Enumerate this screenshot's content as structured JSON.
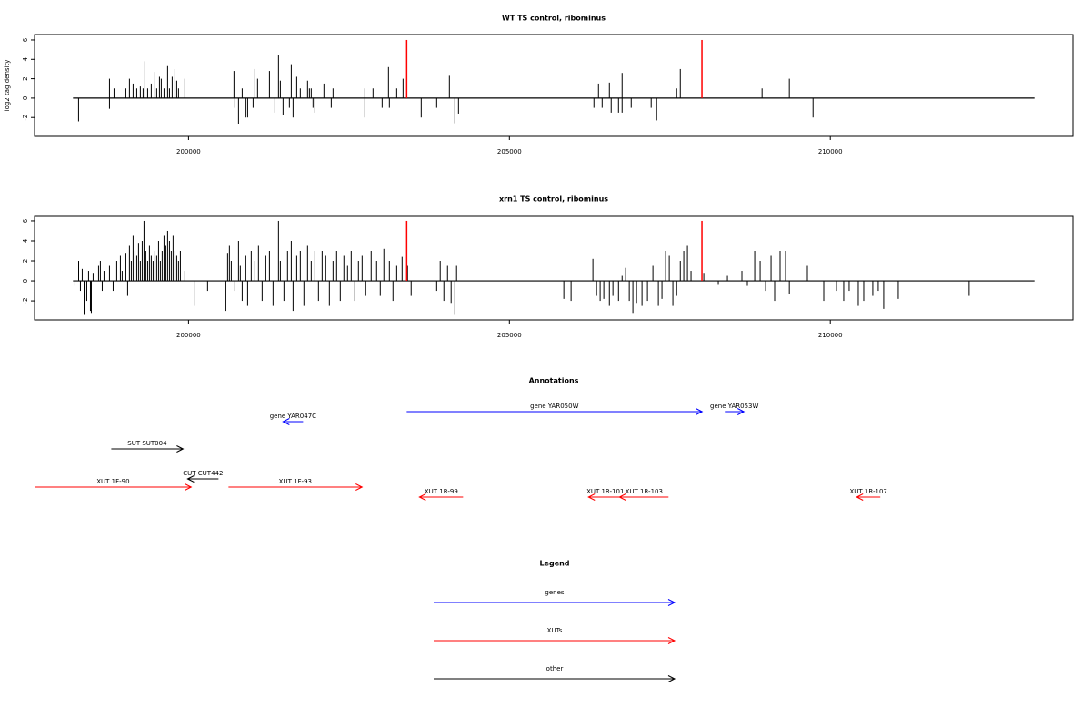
{
  "chart_data": [
    {
      "type": "spikes",
      "title": "WT TS control, ribominus",
      "y_label": "log2 tag density",
      "color": "#000000",
      "xlim": [
        197600,
        213780
      ],
      "xticks": [
        200000,
        205000,
        210000
      ],
      "ylim": [
        -3.95,
        6.56
      ],
      "yticks": [
        -2,
        0,
        2,
        4,
        6
      ],
      "x": [
        198286,
        198768,
        198768,
        198839,
        199023,
        199079,
        199136,
        199193,
        199249,
        199292,
        199320,
        199363,
        199419,
        199476,
        199504,
        199547,
        199575,
        199618,
        199674,
        199703,
        199745,
        199788,
        199816,
        199844,
        199943,
        200708,
        200722,
        200779,
        200836,
        200892,
        200921,
        201006,
        201034,
        201076,
        201261,
        201346,
        201402,
        201431,
        201473,
        201572,
        201601,
        201629,
        201686,
        201742,
        201855,
        201884,
        201912,
        201940,
        201969,
        202110,
        202224,
        202252,
        202748,
        202748,
        202875,
        203017,
        203116,
        203130,
        203244,
        203343,
        203626,
        203867,
        204065,
        204150,
        204207,
        206317,
        206388,
        206445,
        206558,
        206586,
        206700,
        206756,
        206756,
        206898,
        207209,
        207294,
        207606,
        207663,
        208937,
        209362,
        209731
      ],
      "values": [
        -2.4,
        2,
        -1.1,
        1,
        1,
        2,
        1.5,
        1,
        1.2,
        1,
        3.8,
        1,
        1.5,
        2.7,
        1,
        2.2,
        2,
        1,
        3.3,
        1,
        2.2,
        3,
        1.8,
        1,
        2,
        2.8,
        -1,
        -2.7,
        1,
        -2,
        -2,
        -1,
        3,
        2,
        2.8,
        -1.5,
        4.4,
        1.8,
        -1.7,
        -1,
        3.5,
        -2,
        2.2,
        1,
        1.8,
        1,
        1,
        -1,
        -1.5,
        1.5,
        -1,
        1,
        1,
        -2,
        1,
        -1,
        3.2,
        -1,
        1,
        2,
        -2,
        -1,
        2.3,
        -2.6,
        -1.6,
        -1,
        1.5,
        -1,
        1.6,
        -1.5,
        -1.5,
        2.6,
        -1.5,
        -1,
        -1,
        -2.3,
        1,
        3,
        1,
        2,
        -2
      ],
      "highlights": {
        "color": "#ff0000",
        "x": [
          203400,
          208000
        ],
        "values": [
          6,
          6
        ]
      }
    },
    {
      "type": "spikes",
      "title": "xrn1 TS control, ribominus",
      "color": "#000000",
      "xlim": [
        197600,
        213780
      ],
      "xticks": [
        200000,
        205000,
        210000
      ],
      "ylim": [
        -3.9,
        6.45
      ],
      "yticks": [
        -2,
        0,
        2,
        4,
        6
      ],
      "x": [
        198230,
        198287,
        198315,
        198343,
        198372,
        198414,
        198442,
        198471,
        198485,
        198513,
        198542,
        198598,
        198626,
        198655,
        198683,
        198768,
        198825,
        198881,
        198938,
        198966,
        199023,
        199051,
        199079,
        199108,
        199136,
        199165,
        199193,
        199221,
        199249,
        199278,
        199306,
        199320,
        199334,
        199363,
        199391,
        199419,
        199448,
        199476,
        199504,
        199533,
        199561,
        199589,
        199618,
        199646,
        199674,
        199703,
        199731,
        199759,
        199788,
        199816,
        199844,
        199873,
        199943,
        200099,
        200297,
        200581,
        200609,
        200637,
        200666,
        200722,
        200779,
        200807,
        200836,
        200892,
        200921,
        200977,
        201034,
        201090,
        201147,
        201204,
        201261,
        201317,
        201402,
        201431,
        201487,
        201543,
        201601,
        201629,
        201686,
        201742,
        201798,
        201855,
        201912,
        201969,
        202025,
        202082,
        202138,
        202195,
        202252,
        202308,
        202365,
        202421,
        202478,
        202535,
        202591,
        202648,
        202705,
        202761,
        202846,
        202931,
        202988,
        203044,
        203130,
        203186,
        203244,
        203328,
        203413,
        203469,
        203867,
        203922,
        203979,
        204036,
        204092,
        204150,
        204177,
        205848,
        205961,
        206301,
        206358,
        206414,
        206471,
        206558,
        206613,
        206700,
        206756,
        206811,
        206868,
        206924,
        206981,
        207066,
        207151,
        207236,
        207321,
        207377,
        207434,
        207491,
        207547,
        207606,
        207663,
        207717,
        207774,
        207830,
        208029,
        208255,
        208397,
        208623,
        208708,
        208822,
        208907,
        208992,
        209077,
        209133,
        209218,
        209303,
        209362,
        209643,
        209898,
        210096,
        210209,
        210294,
        210436,
        210521,
        210662,
        210747,
        210832,
        211059,
        212163
      ],
      "values": [
        -0.5,
        2,
        -1,
        1.2,
        -3.4,
        -2,
        1,
        -3,
        -3.2,
        0.8,
        -1.8,
        1.5,
        2,
        -1,
        1,
        1.5,
        -1,
        2,
        2.5,
        1,
        2.8,
        -1.5,
        3.5,
        2,
        4.5,
        3,
        2.5,
        3.8,
        2,
        4,
        6,
        5.5,
        3,
        2,
        3.5,
        2.5,
        2,
        3,
        2.5,
        4,
        2,
        3,
        4.5,
        3.5,
        5,
        4,
        3,
        4.5,
        3,
        2.5,
        2,
        3,
        1,
        -2.5,
        -1,
        -3,
        2.8,
        3.5,
        2,
        -1,
        4,
        1.5,
        -2,
        2.5,
        -2.5,
        3,
        2,
        3.5,
        -2,
        2.5,
        3,
        -2.5,
        6,
        2,
        -2,
        3,
        4,
        -3,
        2.5,
        3,
        -2.5,
        3.5,
        2,
        3,
        -2,
        3,
        2.5,
        -2.5,
        2,
        3,
        -2,
        2.5,
        1.5,
        3,
        -2,
        2,
        2.5,
        -1.5,
        3,
        2,
        -1.5,
        3.2,
        2,
        -2,
        1.5,
        2.4,
        1.5,
        -1.5,
        -1,
        2,
        -2,
        1.5,
        -2.2,
        -3.4,
        1.5,
        -1.8,
        -2,
        2.2,
        -1.5,
        -2,
        -1.8,
        -2.5,
        -1.5,
        -2,
        0.5,
        1.3,
        -2,
        -3.2,
        -2.2,
        -2.5,
        -2,
        1.5,
        -2.5,
        -1.8,
        3,
        2.5,
        -2.5,
        -1.5,
        2,
        3,
        3.5,
        1,
        0.8,
        -0.4,
        0.5,
        1,
        -0.5,
        3,
        2,
        -1,
        2.5,
        -2,
        3,
        3,
        -1.3,
        1.5,
        -2,
        -1,
        -2,
        -1,
        -2.5,
        -2,
        -1.5,
        -1,
        -2.8,
        -1.8,
        -1.5
      ],
      "highlights": {
        "color": "#ff0000",
        "x": [
          203400,
          208000
        ],
        "values": [
          6,
          6
        ]
      }
    },
    {
      "type": "annotation",
      "title": "Annotations",
      "xlim": [
        197600,
        213780
      ],
      "features": [
        {
          "label": "gene YAR047C",
          "start": 201785,
          "end": 201473,
          "color": "#0000ff"
        },
        {
          "label": "gene YAR050W",
          "start": 203400,
          "end": 208003,
          "color": "#0000ff"
        },
        {
          "label": "gene YAR053W",
          "start": 208357,
          "end": 208654,
          "color": "#0000ff"
        },
        {
          "label": "SUT SUT004",
          "start": 198796,
          "end": 199915,
          "color": "#000000"
        },
        {
          "label": "CUT CUT442",
          "start": 200467,
          "end": 199986,
          "color": "#000000"
        },
        {
          "label": "XUT 1F-90",
          "start": 197606,
          "end": 200042,
          "color": "#ff0000"
        },
        {
          "label": "XUT 1F-93",
          "start": 200623,
          "end": 202705,
          "color": "#ff0000"
        },
        {
          "label": "XUT 1R-99",
          "start": 204278,
          "end": 203598,
          "color": "#ff0000"
        },
        {
          "label": "XUT 1R-101",
          "start": 206756,
          "end": 206232,
          "color": "#ff0000"
        },
        {
          "label": "XUT 1R-103",
          "start": 207479,
          "end": 206714,
          "color": "#ff0000"
        },
        {
          "label": "XUT 1R-107",
          "start": 210779,
          "end": 210411,
          "color": "#ff0000"
        }
      ]
    }
  ],
  "legend": {
    "title": "Legend",
    "entries": [
      {
        "label": "genes",
        "color": "#0000ff"
      },
      {
        "label": "XUTs",
        "color": "#ff0000"
      },
      {
        "label": "other",
        "color": "#000000"
      }
    ]
  }
}
